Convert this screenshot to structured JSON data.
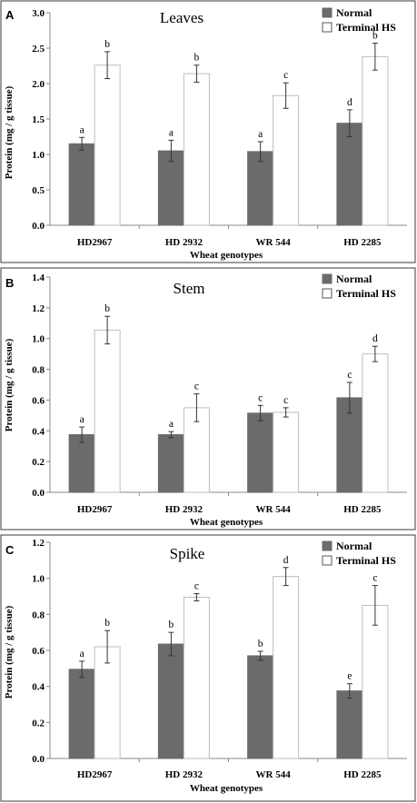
{
  "legend": {
    "series": [
      {
        "name": "Normal",
        "color": "#6b6b6b"
      },
      {
        "name": "Terminal HS",
        "color": "#ffffff"
      }
    ]
  },
  "chart_data": [
    {
      "panel_letter": "A",
      "type": "bar",
      "title": "Leaves",
      "xlabel": "Wheat genotypes",
      "ylabel": "Protein (mg / g tissue)",
      "ylim": [
        0,
        3.0
      ],
      "yticks": [
        "0.0",
        "0.5",
        "1.0",
        "1.5",
        "2.0",
        "2.5",
        "3.0"
      ],
      "categories": [
        "HD2967",
        "HD 2932",
        "WR 544",
        "HD 2285"
      ],
      "legend_position": "top-right",
      "grid": false,
      "series": [
        {
          "name": "Normal",
          "values": [
            1.15,
            1.05,
            1.04,
            1.44
          ],
          "errors": [
            0.09,
            0.15,
            0.14,
            0.19
          ],
          "labels": [
            "a",
            "a",
            "a",
            "d"
          ]
        },
        {
          "name": "Terminal HS",
          "values": [
            2.26,
            2.14,
            1.83,
            2.38
          ],
          "errors": [
            0.19,
            0.12,
            0.18,
            0.19
          ],
          "labels": [
            "b",
            "b",
            "c",
            "b"
          ]
        }
      ]
    },
    {
      "panel_letter": "B",
      "type": "bar",
      "title": "Stem",
      "xlabel": "Wheat genotypes",
      "ylabel": "Protein (mg / g tissue)",
      "ylim": [
        0,
        1.4
      ],
      "yticks": [
        "0.0",
        "0.2",
        "0.4",
        "0.6",
        "0.8",
        "1.0",
        "1.2",
        "1.4"
      ],
      "categories": [
        "HD2967",
        "HD 2932",
        "WR 544",
        "HD 2285"
      ],
      "legend_position": "top-right",
      "grid": false,
      "series": [
        {
          "name": "Normal",
          "values": [
            0.375,
            0.375,
            0.515,
            0.615
          ],
          "errors": [
            0.05,
            0.02,
            0.05,
            0.1
          ],
          "labels": [
            "a",
            "a",
            "c",
            "c"
          ]
        },
        {
          "name": "Terminal HS",
          "values": [
            1.055,
            0.55,
            0.52,
            0.9
          ],
          "errors": [
            0.09,
            0.09,
            0.03,
            0.05
          ],
          "labels": [
            "b",
            "c",
            "c",
            "d"
          ]
        }
      ]
    },
    {
      "panel_letter": "C",
      "type": "bar",
      "title": "Spike",
      "xlabel": "Wheat genotypes",
      "ylabel": "Protein (mg / g tissue)",
      "ylim": [
        0,
        1.2
      ],
      "yticks": [
        "0.0",
        "0.2",
        "0.4",
        "0.6",
        "0.8",
        "1.0",
        "1.2"
      ],
      "categories": [
        "HD2967",
        "HD 2932",
        "WR 544",
        "HD 2285"
      ],
      "legend_position": "top-right",
      "grid": false,
      "series": [
        {
          "name": "Normal",
          "values": [
            0.495,
            0.635,
            0.57,
            0.375
          ],
          "errors": [
            0.045,
            0.065,
            0.025,
            0.04
          ],
          "labels": [
            "a",
            "b",
            "b",
            "e"
          ]
        },
        {
          "name": "Terminal HS",
          "values": [
            0.62,
            0.895,
            1.01,
            0.85
          ],
          "errors": [
            0.09,
            0.02,
            0.05,
            0.11
          ],
          "labels": [
            "b",
            "c",
            "d",
            "c"
          ]
        }
      ]
    }
  ]
}
